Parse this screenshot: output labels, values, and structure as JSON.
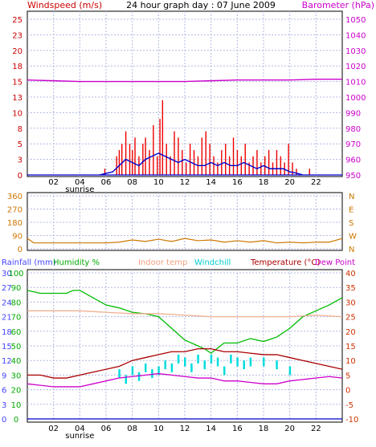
{
  "header": {
    "left_label": "Windspeed (m/s)",
    "center_title": "24 hour graph day : 07 June 2009",
    "right_label": "Barometer (hPa)"
  },
  "colors": {
    "wind_bar": "#ee0000",
    "wind_avg": "#0000cc",
    "baro": "#cc00cc",
    "dir": "#cc7700",
    "humidity": "#00bb00",
    "indoor": "#f0b090",
    "windchill": "#00dddd",
    "temperature": "#aa0000",
    "dewpoint": "#cc00cc",
    "rainfall": "#0000cc",
    "grid": "#b0b8e0",
    "axis_left": "#cc0000",
    "axis_right": "#cc00cc",
    "axis_dir": "#cc7700",
    "axis_rain": "#4444ff",
    "axis_hum": "#00aa00",
    "axis_temp": "#cc3300"
  },
  "chart_data": [
    {
      "type": "bar",
      "title": "24 hour graph day : 07 June 2009",
      "ylabel": "Windspeed (m/s)",
      "y2label": "Barometer (hPa)",
      "ylim": [
        0,
        25
      ],
      "y2lim": [
        950,
        1050
      ],
      "yticks": [
        "0",
        "3",
        "5",
        "8",
        "10",
        "13",
        "15",
        "18",
        "20",
        "23",
        "25"
      ],
      "y2ticks": [
        "950",
        "960",
        "970",
        "980",
        "990",
        "1000",
        "1010",
        "1020",
        "1030",
        "1040",
        "1050"
      ],
      "xticks": [
        "02",
        "04",
        "06",
        "08",
        "10",
        "12",
        "14",
        "16",
        "18",
        "20",
        "22"
      ],
      "xlim": [
        0,
        24
      ],
      "sunrise_label": "sunrise",
      "sunrise_hour": 4,
      "series": [
        {
          "name": "Windspeed gust",
          "x": [
            5.9,
            6.8,
            7.0,
            7.2,
            7.5,
            7.8,
            8.0,
            8.2,
            8.5,
            8.8,
            9.0,
            9.3,
            9.6,
            9.9,
            10.1,
            10.3,
            10.6,
            10.9,
            11.2,
            11.5,
            11.8,
            12.1,
            12.4,
            12.7,
            13.0,
            13.3,
            13.6,
            13.9,
            14.2,
            14.5,
            14.8,
            15.1,
            15.4,
            15.7,
            16.0,
            16.3,
            16.6,
            16.9,
            17.2,
            17.5,
            17.8,
            18.1,
            18.4,
            18.7,
            19.0,
            19.3,
            19.6,
            19.9,
            20.2,
            20.5,
            21.5
          ],
          "values": [
            1,
            3,
            4,
            5,
            7,
            5,
            4,
            6,
            3,
            5,
            6,
            4,
            8,
            3,
            9,
            12,
            5,
            3,
            7,
            6,
            4,
            2,
            5,
            4,
            3,
            6,
            7,
            5,
            3,
            2,
            4,
            5,
            3,
            6,
            4,
            3,
            5,
            2,
            3,
            4,
            2,
            3,
            4,
            2,
            4,
            3,
            2,
            5,
            2,
            1,
            1
          ]
        },
        {
          "name": "Windspeed average",
          "x": [
            5.5,
            6.5,
            7.0,
            7.5,
            8.0,
            8.5,
            9.0,
            9.5,
            10.0,
            10.5,
            11.0,
            11.5,
            12.0,
            12.5,
            13.0,
            13.5,
            14.0,
            14.5,
            15.0,
            15.5,
            16.0,
            16.5,
            17.0,
            17.5,
            18.0,
            18.5,
            19.0,
            19.5,
            20.0,
            20.5,
            21.0
          ],
          "values": [
            0,
            0.5,
            1.5,
            2.5,
            2,
            1.5,
            2.5,
            3,
            3.5,
            3,
            2.5,
            2,
            2.5,
            2,
            1.5,
            1.5,
            2,
            1.5,
            2,
            1.5,
            1.5,
            2,
            1.5,
            1,
            1.5,
            1,
            1,
            1,
            0.5,
            0.3,
            0
          ]
        },
        {
          "name": "Barometer",
          "x": [
            0,
            2,
            4,
            6,
            8,
            10,
            12,
            14,
            16,
            18,
            20,
            22,
            24
          ],
          "values": [
            1011,
            1010.5,
            1010,
            1010,
            1010,
            1010,
            1010,
            1010.5,
            1011,
            1011,
            1011,
            1011.5,
            1011.5
          ]
        }
      ]
    },
    {
      "type": "line",
      "ylabel": "",
      "yticks": [
        "0",
        "90",
        "180",
        "270",
        "360"
      ],
      "ylim": [
        0,
        360
      ],
      "y2ticks": [
        "N",
        "W",
        "S",
        "E",
        "N"
      ],
      "series": [
        {
          "name": "Wind direction",
          "x": [
            0,
            0.5,
            2,
            4,
            6,
            7,
            8,
            9,
            10,
            11,
            12,
            13,
            14,
            15,
            16,
            17,
            18,
            19,
            20,
            21,
            22,
            23,
            24
          ],
          "values": [
            70,
            40,
            40,
            40,
            40,
            45,
            60,
            50,
            65,
            50,
            70,
            55,
            60,
            45,
            55,
            45,
            55,
            40,
            45,
            40,
            45,
            45,
            70
          ]
        }
      ]
    },
    {
      "type": "line",
      "xticks": [
        "02",
        "04",
        "06",
        "08",
        "10",
        "12",
        "14",
        "16",
        "18",
        "20",
        "22"
      ],
      "xlim": [
        0,
        24
      ],
      "sunrise_label": "sunrise",
      "labels": {
        "rainfall": "Rainfall (mm)",
        "humidity": "Humidity %",
        "indoor": "Indoor temp",
        "windchill": "Windchill",
        "temperature": "Temperature (°C)",
        "dewpoint": "Dew Point"
      },
      "y_rain_ticks": [
        "0",
        "3",
        "6",
        "9",
        "12",
        "15",
        "18",
        "21",
        "24",
        "27",
        "30"
      ],
      "y_hum_ticks": [
        "0",
        "10",
        "20",
        "30",
        "40",
        "50",
        "60",
        "70",
        "80",
        "90",
        "100"
      ],
      "y_temp_ticks": [
        "-10",
        "-5",
        "0",
        "5",
        "10",
        "15",
        "20",
        "25",
        "30",
        "35",
        "40"
      ],
      "ylim_temp": [
        -10,
        40
      ],
      "ylim_hum": [
        0,
        100
      ],
      "ylim_rain": [
        0,
        30
      ],
      "series": [
        {
          "name": "Humidity %",
          "axis": "hum",
          "x": [
            0,
            1,
            2,
            3,
            3.5,
            4,
            5,
            6,
            7,
            8,
            9,
            10,
            11,
            12,
            13,
            13.5,
            14,
            15,
            16,
            17,
            18,
            19,
            20,
            21,
            22,
            23,
            24
          ],
          "values": [
            88,
            86,
            86,
            86,
            88,
            88,
            83,
            78,
            76,
            73,
            72,
            70,
            62,
            54,
            50,
            48,
            45,
            52,
            52,
            55,
            53,
            56,
            62,
            70,
            74,
            78,
            83
          ]
        },
        {
          "name": "Indoor temp",
          "axis": "temp",
          "x": [
            0,
            2,
            4,
            6,
            8,
            10,
            12,
            14,
            16,
            18,
            20,
            22,
            24
          ],
          "values": [
            27,
            27,
            27,
            26.5,
            26,
            26,
            25.5,
            25,
            25,
            25,
            25,
            25.5,
            25
          ]
        },
        {
          "name": "Windchill",
          "axis": "temp",
          "x": [
            7.0,
            7.5,
            8.0,
            8.5,
            9.0,
            9.5,
            10.0,
            10.5,
            11.0,
            11.5,
            12.0,
            12.5,
            13.0,
            13.5,
            14.0,
            14.5,
            15.0,
            15.5,
            16.0,
            16.5,
            17.0,
            18.0,
            19.0,
            20.0
          ],
          "values": [
            7,
            5,
            8,
            6,
            9,
            7,
            8,
            10,
            9,
            12,
            11,
            9,
            12,
            10,
            12,
            11,
            8,
            12,
            11,
            10,
            11,
            11,
            10,
            8
          ]
        },
        {
          "name": "Temperature (°C)",
          "axis": "temp",
          "x": [
            0,
            1,
            2,
            3,
            4,
            5,
            6,
            7,
            8,
            9,
            10,
            11,
            12,
            13,
            14,
            15,
            16,
            17,
            18,
            19,
            20,
            21,
            22,
            23,
            24
          ],
          "values": [
            5,
            5,
            4,
            4,
            5,
            6,
            7,
            8,
            10,
            11,
            12,
            13,
            13,
            14,
            14,
            13,
            13,
            12.5,
            12,
            12,
            11,
            10,
            9,
            8,
            7
          ]
        },
        {
          "name": "Dew Point",
          "axis": "temp",
          "x": [
            0,
            1,
            2,
            3,
            4,
            5,
            6,
            7,
            8,
            9,
            10,
            11,
            12,
            13,
            14,
            15,
            16,
            17,
            18,
            19,
            20,
            21,
            22,
            23,
            24
          ],
          "values": [
            2,
            1.5,
            1,
            1,
            1,
            2,
            3,
            4,
            4.5,
            5,
            5.5,
            5,
            4.5,
            4,
            4,
            3,
            3,
            2.5,
            2,
            2,
            3,
            3.5,
            4,
            4.5,
            4
          ]
        },
        {
          "name": "Rainfall (mm)",
          "axis": "rain",
          "x": [
            0,
            24
          ],
          "values": [
            0,
            0
          ]
        }
      ]
    }
  ]
}
